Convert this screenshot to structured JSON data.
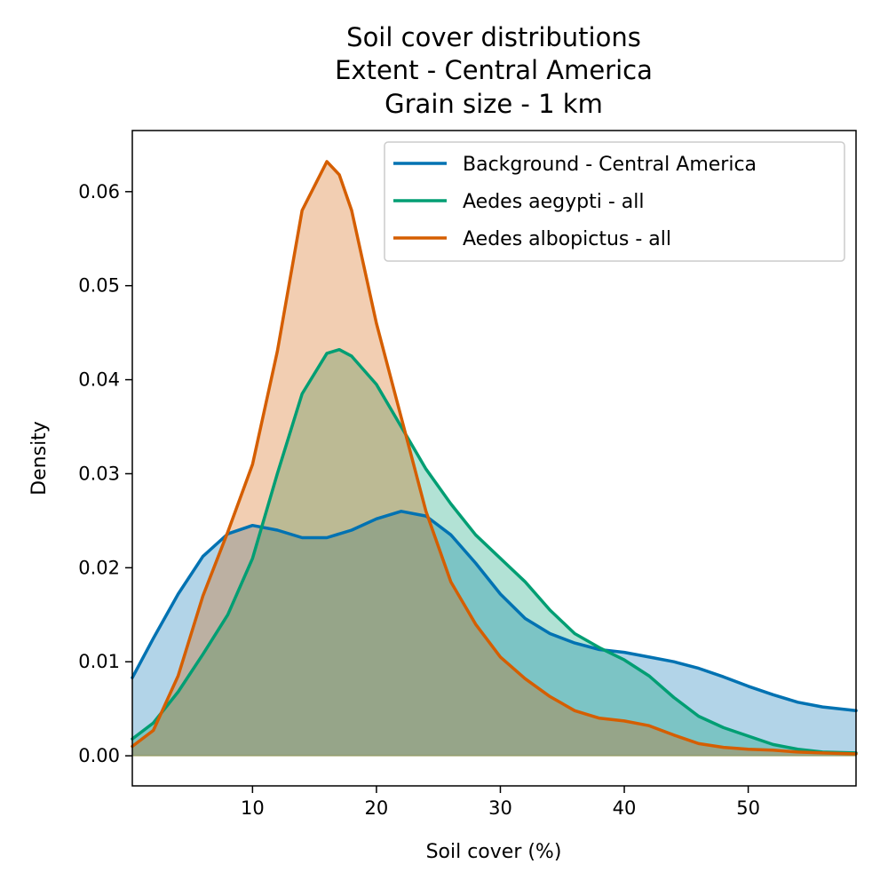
{
  "chart_data": {
    "type": "area",
    "title_lines": [
      "Soil cover distributions",
      "Extent - Central America",
      "Grain size - 1 km"
    ],
    "xlabel": "Soil cover (%)",
    "ylabel": "Density",
    "xlim": [
      0.3,
      58.7
    ],
    "ylim": [
      -0.0032,
      0.0665
    ],
    "xticks": [
      10,
      20,
      30,
      40,
      50
    ],
    "yticks": [
      0.0,
      0.01,
      0.02,
      0.03,
      0.04,
      0.05,
      0.06
    ],
    "ytick_labels": [
      "0.00",
      "0.01",
      "0.02",
      "0.03",
      "0.04",
      "0.05",
      "0.06"
    ],
    "grid": false,
    "legend_position": "top-right",
    "series": [
      {
        "name": "Background - Central America",
        "color": "#0072B2",
        "fill_opacity": 0.3,
        "x": [
          0.3,
          2,
          4,
          6,
          8,
          10,
          12,
          14,
          16,
          18,
          20,
          22,
          24,
          26,
          28,
          30,
          32,
          34,
          36,
          38,
          40,
          42,
          44,
          46,
          48,
          50,
          52,
          54,
          56,
          58.7
        ],
        "y": [
          0.0083,
          0.0125,
          0.0172,
          0.0212,
          0.0236,
          0.0245,
          0.024,
          0.0232,
          0.0232,
          0.024,
          0.0252,
          0.026,
          0.0255,
          0.0235,
          0.0205,
          0.0172,
          0.0146,
          0.013,
          0.012,
          0.0113,
          0.011,
          0.0105,
          0.01,
          0.0093,
          0.0084,
          0.0074,
          0.0065,
          0.0057,
          0.0052,
          0.0048
        ]
      },
      {
        "name": "Aedes aegypti - all",
        "color": "#009E73",
        "fill_opacity": 0.3,
        "x": [
          0.3,
          2,
          4,
          6,
          8,
          10,
          12,
          14,
          16,
          17,
          18,
          20,
          22,
          24,
          26,
          28,
          30,
          32,
          34,
          36,
          38,
          40,
          42,
          44,
          46,
          48,
          50,
          52,
          54,
          56,
          58.7
        ],
        "y": [
          0.0018,
          0.0035,
          0.0068,
          0.0108,
          0.015,
          0.021,
          0.03,
          0.0385,
          0.0428,
          0.0432,
          0.0425,
          0.0395,
          0.035,
          0.0305,
          0.0268,
          0.0235,
          0.021,
          0.0185,
          0.0155,
          0.013,
          0.0115,
          0.0102,
          0.0085,
          0.0062,
          0.0042,
          0.003,
          0.0021,
          0.0012,
          0.0007,
          0.0004,
          0.0003
        ]
      },
      {
        "name": "Aedes albopictus - all",
        "color": "#D55E00",
        "fill_opacity": 0.3,
        "x": [
          0.3,
          2,
          4,
          6,
          8,
          10,
          12,
          14,
          16,
          17,
          18,
          20,
          22,
          24,
          26,
          28,
          30,
          32,
          34,
          36,
          38,
          40,
          42,
          44,
          46,
          48,
          50,
          52,
          54,
          56,
          58.7
        ],
        "y": [
          0.001,
          0.0027,
          0.0085,
          0.017,
          0.0238,
          0.031,
          0.043,
          0.058,
          0.0632,
          0.0618,
          0.058,
          0.046,
          0.036,
          0.026,
          0.0185,
          0.014,
          0.0105,
          0.0082,
          0.0063,
          0.0048,
          0.004,
          0.0037,
          0.0032,
          0.0022,
          0.0013,
          0.0009,
          0.0007,
          0.0006,
          0.0004,
          0.0003,
          0.0002
        ]
      }
    ]
  }
}
